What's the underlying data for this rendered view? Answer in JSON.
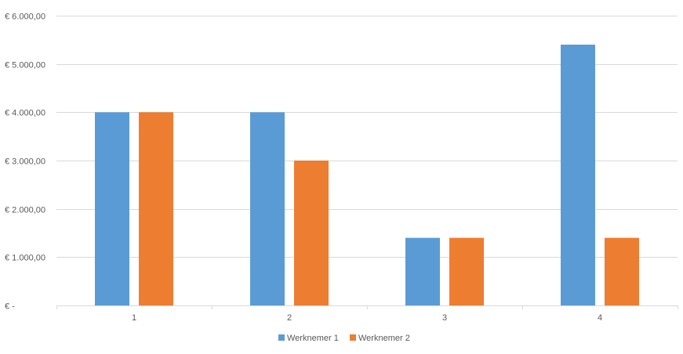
{
  "chart_data": {
    "type": "bar",
    "categories": [
      "1",
      "2",
      "3",
      "4"
    ],
    "series": [
      {
        "name": "Werknemer 1",
        "color": "#5b9bd5",
        "values": [
          4000,
          4000,
          1400,
          5400
        ]
      },
      {
        "name": "Werknemer 2",
        "color": "#ed7d31",
        "values": [
          4000,
          3000,
          1400,
          1400
        ]
      }
    ],
    "ylim": [
      0,
      6000
    ],
    "y_ticks": [
      {
        "value": 0,
        "label": "€ -"
      },
      {
        "value": 1000,
        "label": "€ 1.000,00"
      },
      {
        "value": 2000,
        "label": "€ 2.000,00"
      },
      {
        "value": 3000,
        "label": "€ 3.000,00"
      },
      {
        "value": 4000,
        "label": "€ 4.000,00"
      },
      {
        "value": 5000,
        "label": "€ 5.000,00"
      },
      {
        "value": 6000,
        "label": "€ 6.000,00"
      }
    ],
    "grid": true,
    "legend": "bottom-center",
    "gridline_color": "#d9d9d9",
    "axis_color": "#d9d9d9"
  }
}
